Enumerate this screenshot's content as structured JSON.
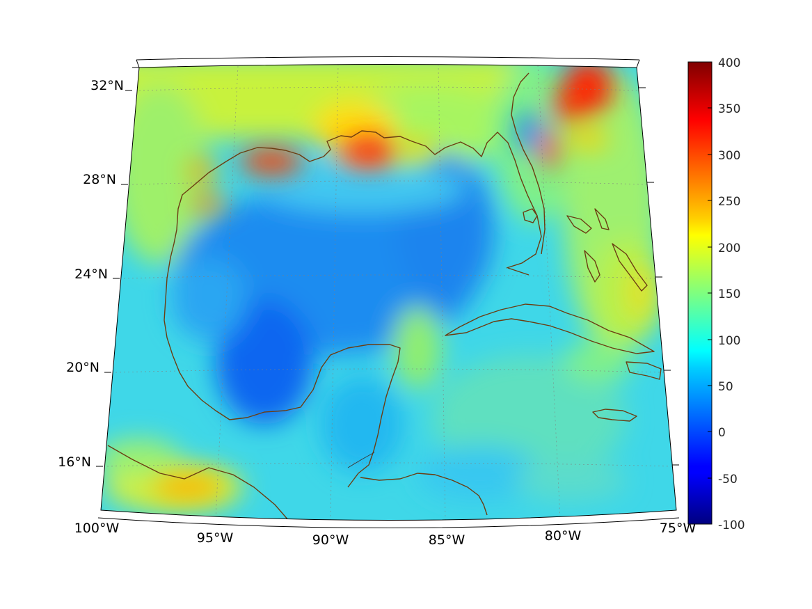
{
  "map": {
    "lon_labels": [
      "100°W",
      "95°W",
      "90°W",
      "85°W",
      "80°W",
      "75°W"
    ],
    "lat_labels": [
      "32°N",
      "28°N",
      "24°N",
      "20°N",
      "16°N"
    ],
    "extent": {
      "lon": [
        -100,
        -75
      ],
      "lat": [
        14.5,
        33
      ]
    },
    "colormap": "jet",
    "coastline_color": "#6b3d12"
  },
  "colorbar": {
    "ticks": [
      "400",
      "350",
      "300",
      "250",
      "200",
      "150",
      "100",
      "50",
      "0",
      "-50",
      "-100"
    ],
    "range": [
      -100,
      400
    ]
  }
}
